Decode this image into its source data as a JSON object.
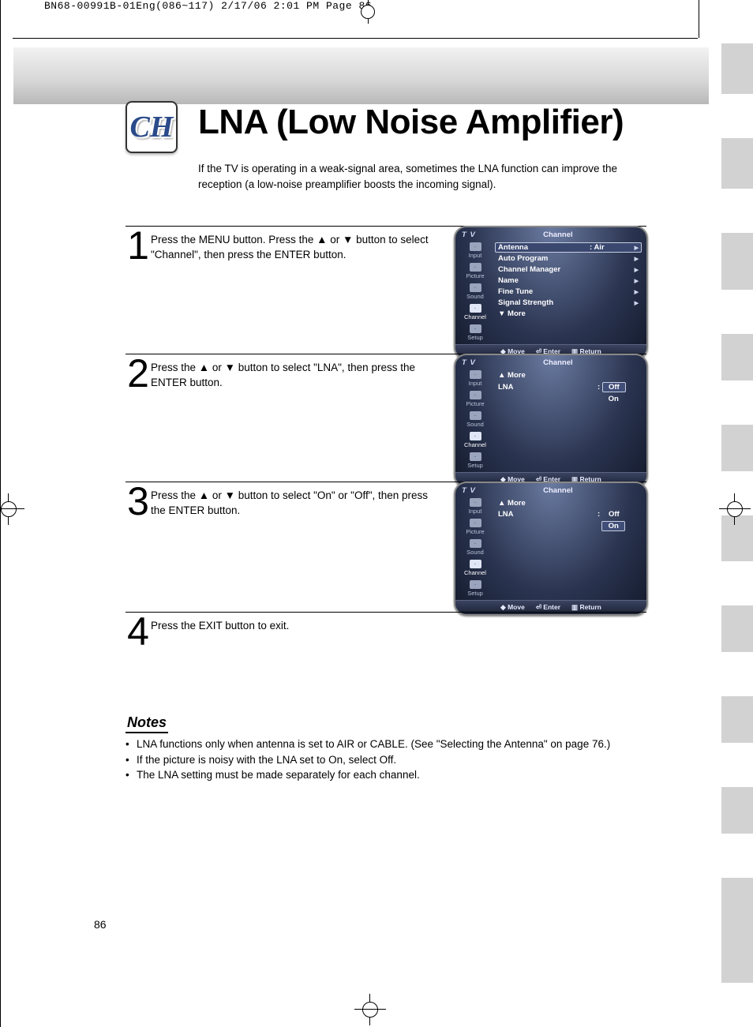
{
  "crop_header": "BN68-00991B-01Eng(086~117)  2/17/06  2:01 PM  Page 86",
  "badge": "CH",
  "title": "LNA (Low Noise Amplifier)",
  "intro": "If the TV is operating in a weak-signal area, sometimes the LNA function can improve the reception (a low-noise preamplifier boosts the incoming signal).",
  "steps": [
    {
      "num": "1",
      "text": "Press the MENU button. Press the ▲ or ▼ button to select \"Channel\", then press the ENTER button."
    },
    {
      "num": "2",
      "text": "Press the ▲ or ▼ button to select \"LNA\", then press the ENTER button."
    },
    {
      "num": "3",
      "text": "Press the ▲ or ▼ button to select \"On\" or \"Off\", then press the ENTER button."
    },
    {
      "num": "4",
      "text": "Press the EXIT button to exit."
    }
  ],
  "side_greytabs": [
    96,
    96,
    108,
    88,
    88,
    88,
    88,
    88,
    88,
    200
  ],
  "osd_common": {
    "tv": "T V",
    "head": "Channel",
    "side": [
      {
        "label": "Input"
      },
      {
        "label": "Picture"
      },
      {
        "label": "Sound"
      },
      {
        "label": "Channel"
      },
      {
        "label": "Setup"
      }
    ],
    "foot_move": "Move",
    "foot_enter": "Enter",
    "foot_return": "Return"
  },
  "osd1_lines": [
    {
      "l": "Antenna",
      "r": ": Air",
      "hl": true,
      "ar": true
    },
    {
      "l": "Auto Program",
      "r": "",
      "ar": true
    },
    {
      "l": "Channel Manager",
      "r": "",
      "ar": true
    },
    {
      "l": "Name",
      "r": "",
      "ar": true
    },
    {
      "l": "Fine Tune",
      "r": "",
      "ar": true
    },
    {
      "l": "Signal Strength",
      "r": "",
      "ar": true
    },
    {
      "l": "▼ More",
      "r": "",
      "ar": false
    }
  ],
  "osd2": {
    "more": "▲ More",
    "lna": "LNA",
    "colon": ":",
    "off": "Off",
    "on": "On",
    "hl": "off"
  },
  "osd3": {
    "more": "▲ More",
    "lna": "LNA",
    "colon": ":",
    "off": "Off",
    "on": "On",
    "hl": "on"
  },
  "notes_head": "Notes",
  "notes": [
    "LNA functions only when antenna is set to AIR or CABLE. (See \"Selecting the Antenna\" on page 76.)",
    "If the picture is noisy with the LNA set to On, select Off.",
    "The LNA setting must be made separately for each channel."
  ],
  "pagenum": "86",
  "colors": {
    "osd_bg": "#2a3450",
    "osd_border": "#888888",
    "page_bg": "#ffffff"
  }
}
